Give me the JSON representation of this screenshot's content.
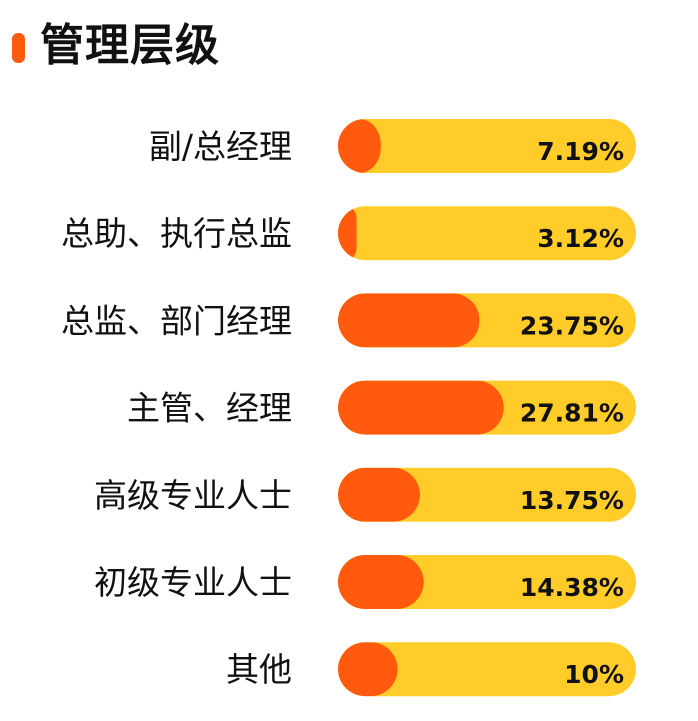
{
  "page": {
    "title": "管理层级"
  },
  "colors": {
    "accent": "#FF5A0E",
    "track": "#FFCC29",
    "fill": "#FF5A0E",
    "text": "#111111"
  },
  "chart_data": {
    "type": "bar",
    "orientation": "horizontal",
    "title": "管理层级",
    "categories": [
      "副/总经理",
      "总助、执行总监",
      "总监、部门经理",
      "主管、经理",
      "高级专业人士",
      "初级专业人士",
      "其他"
    ],
    "values": [
      7.19,
      3.12,
      23.75,
      27.81,
      13.75,
      14.38,
      10
    ],
    "value_labels": [
      "7.19%",
      "3.12%",
      "23.75%",
      "27.81%",
      "13.75%",
      "14.38%",
      "10%"
    ],
    "unit": "%",
    "xlim": [
      0,
      50
    ],
    "grid": false,
    "legend": "none"
  }
}
